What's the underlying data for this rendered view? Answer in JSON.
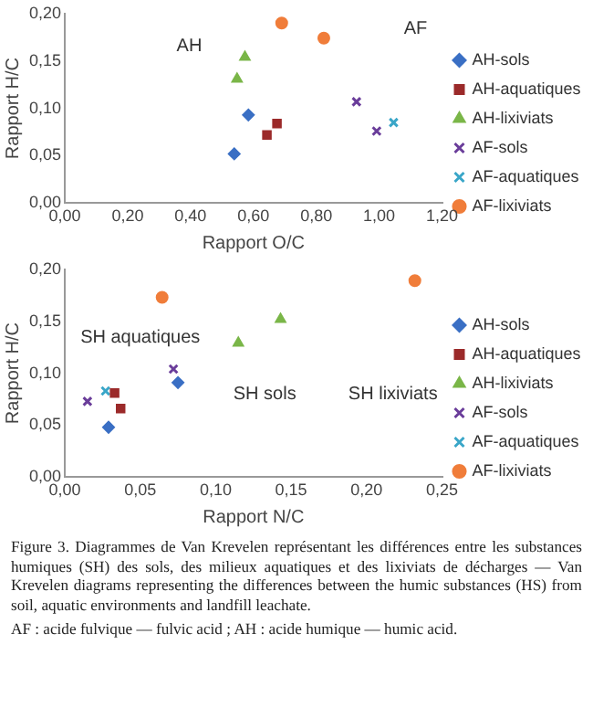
{
  "chart_data": [
    {
      "type": "scatter",
      "xlabel": "Rapport O/C",
      "ylabel": "Rapport H/C",
      "xlim": [
        0,
        1.2
      ],
      "ylim": [
        0,
        0.2
      ],
      "grid": false,
      "legend": "right",
      "xticks": [
        {
          "value": 0,
          "label": "0,00"
        },
        {
          "value": 0.2,
          "label": "0,20"
        },
        {
          "value": 0.4,
          "label": "0,40"
        },
        {
          "value": 0.6,
          "label": "0,60"
        },
        {
          "value": 0.8,
          "label": "0,80"
        },
        {
          "value": 1,
          "label": "1,00"
        },
        {
          "value": 1.2,
          "label": "1,20"
        }
      ],
      "yticks": [
        {
          "value": 0,
          "label": "0,00"
        },
        {
          "value": 0.05,
          "label": "0,05"
        },
        {
          "value": 0.1,
          "label": "0,10"
        },
        {
          "value": 0.15,
          "label": "0,15"
        },
        {
          "value": 0.2,
          "label": "0,20"
        }
      ],
      "series": [
        {
          "name": "AH-sols",
          "color": "#3a6fc4",
          "marker": "diamond",
          "x": [
            0.584,
            0.539
          ],
          "values": [
            0.093,
            0.052
          ]
        },
        {
          "name": "AH-aquatiques",
          "color": "#9b2a2a",
          "marker": "square",
          "x": [
            0.675,
            0.643
          ],
          "values": [
            0.084,
            0.072
          ]
        },
        {
          "name": "AH-lixiviats",
          "color": "#7ab648",
          "marker": "triangle",
          "x": [
            0.573,
            0.548
          ],
          "values": [
            0.154,
            0.131
          ]
        },
        {
          "name": "AF-sols",
          "color": "#6a3d9a",
          "marker": "cross",
          "x": [
            0.928,
            0.992
          ],
          "values": [
            0.107,
            0.076
          ]
        },
        {
          "name": "AF-aquatiques",
          "color": "#3aa6c8",
          "marker": "cross",
          "x": [
            1.046
          ],
          "values": [
            0.085
          ]
        },
        {
          "name": "AF-lixiviats",
          "color": "#f07d3a",
          "marker": "circle",
          "x": [
            0.69,
            0.824
          ],
          "values": [
            0.19,
            0.174
          ]
        }
      ],
      "annotations": [
        "AH",
        "AF"
      ]
    },
    {
      "type": "scatter",
      "xlabel": "Rapport N/C",
      "ylabel": "Rapport H/C",
      "xlim": [
        0,
        0.25
      ],
      "ylim": [
        0,
        0.2
      ],
      "grid": false,
      "legend": "right",
      "xticks": [
        {
          "value": 0,
          "label": "0,00"
        },
        {
          "value": 0.05,
          "label": "0,05"
        },
        {
          "value": 0.1,
          "label": "0,10"
        },
        {
          "value": 0.15,
          "label": "0,15"
        },
        {
          "value": 0.2,
          "label": "0,20"
        },
        {
          "value": 0.25,
          "label": "0,25"
        }
      ],
      "yticks": [
        {
          "value": 0,
          "label": "0,00"
        },
        {
          "value": 0.05,
          "label": "0,05"
        },
        {
          "value": 0.1,
          "label": "0,10"
        },
        {
          "value": 0.15,
          "label": "0,15"
        },
        {
          "value": 0.2,
          "label": "0,20"
        }
      ],
      "series": [
        {
          "name": "AH-sols",
          "color": "#3a6fc4",
          "marker": "diamond",
          "x": [
            0.075,
            0.029
          ],
          "values": [
            0.091,
            0.048
          ]
        },
        {
          "name": "AH-aquatiques",
          "color": "#9b2a2a",
          "marker": "square",
          "x": [
            0.033,
            0.037
          ],
          "values": [
            0.081,
            0.066
          ]
        },
        {
          "name": "AH-lixiviats",
          "color": "#7ab648",
          "marker": "triangle",
          "x": [
            0.115,
            0.143
          ],
          "values": [
            0.129,
            0.152
          ]
        },
        {
          "name": "AF-sols",
          "color": "#6a3d9a",
          "marker": "cross",
          "x": [
            0.072,
            0.015
          ],
          "values": [
            0.104,
            0.073
          ]
        },
        {
          "name": "AF-aquatiques",
          "color": "#3aa6c8",
          "marker": "cross",
          "x": [
            0.027
          ],
          "values": [
            0.083
          ]
        },
        {
          "name": "AF-lixiviats",
          "color": "#f07d3a",
          "marker": "circle",
          "x": [
            0.0645,
            0.232
          ],
          "values": [
            0.173,
            0.189
          ]
        }
      ],
      "annotations": [
        "SH aquatiques",
        "SH sols",
        "SH lixiviats",
        "Figure 3. Diagrammes de Van Krevelen représentant les différences entre les substances humiques (SH) des sols, des milieux aquatiques et des lixiviats de décharges — Van Krevelen diagrams representing the differences between the humic substances (HS) from soil, aquatic environments and landfill leachate.",
        "AF : acide fulvique — fulvic acid ; AH : acide humique — humic acid."
      ]
    }
  ]
}
